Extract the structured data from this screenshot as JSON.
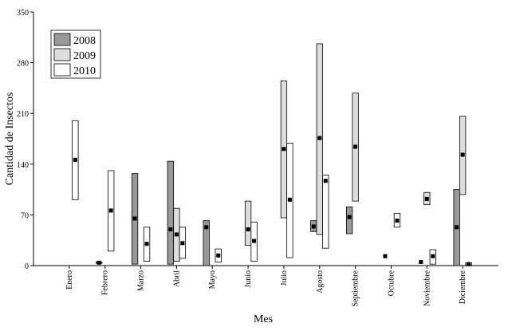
{
  "chart_data": {
    "type": "range-box",
    "x_label": "Mes",
    "y_label": "Cantidad de Insectos",
    "categories": [
      "Enero",
      "Febrero",
      "Marzo",
      "Abril",
      "Mayo",
      "Junio",
      "Julio",
      "Agosto",
      "Septiembre",
      "Octubre",
      "Noviembre",
      "Diciembre"
    ],
    "ylim": [
      0,
      350
    ],
    "yticks": [
      0,
      70,
      140,
      210,
      280,
      350
    ],
    "legend": "upper left",
    "series": [
      {
        "name": "2008",
        "color": "#999999",
        "low": [
          null,
          3,
          2,
          2,
          0,
          null,
          null,
          47,
          44,
          null,
          null,
          0
        ],
        "high": [
          null,
          5,
          127,
          144,
          62,
          null,
          null,
          62,
          81,
          null,
          null,
          105
        ],
        "mean": [
          null,
          4,
          65,
          50,
          53,
          null,
          null,
          54,
          67,
          13,
          5,
          53
        ]
      },
      {
        "name": "2009",
        "color": "#dddddd",
        "low": [
          null,
          null,
          null,
          6,
          null,
          28,
          66,
          43,
          89,
          null,
          84,
          98
        ],
        "high": [
          null,
          null,
          null,
          79,
          null,
          89,
          255,
          306,
          238,
          null,
          101,
          206
        ],
        "mean": [
          null,
          null,
          null,
          43,
          null,
          50,
          161,
          176,
          164,
          null,
          92,
          153
        ]
      },
      {
        "name": "2010",
        "color": "#ffffff",
        "low": [
          91,
          20,
          6,
          10,
          5,
          6,
          11,
          24,
          null,
          53,
          2,
          1
        ],
        "high": [
          200,
          131,
          53,
          53,
          23,
          60,
          169,
          125,
          null,
          72,
          22,
          4
        ],
        "mean": [
          146,
          76,
          30,
          31,
          14,
          34,
          91,
          117,
          null,
          62,
          13,
          2
        ]
      }
    ]
  }
}
